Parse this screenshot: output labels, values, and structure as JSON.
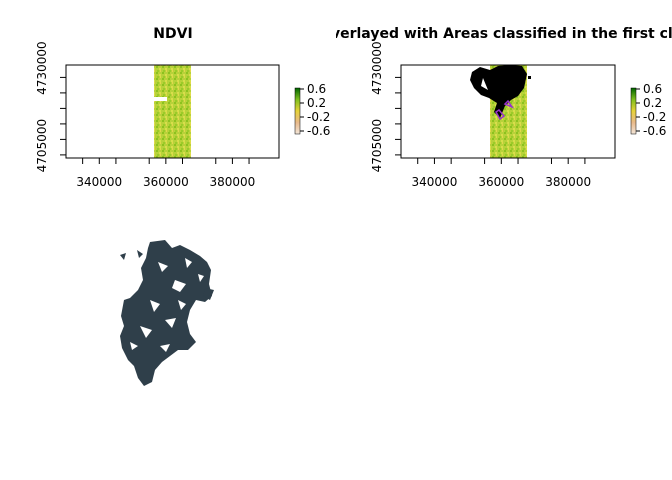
{
  "chart_data": [
    {
      "type": "heatmap",
      "title": "NDVI",
      "x_ticks": [
        340000,
        360000,
        380000
      ],
      "y_ticks": [
        4705000,
        4730000
      ],
      "x_tick_labels": [
        "340000",
        "360000",
        "380000"
      ],
      "y_tick_labels": [
        "4705000",
        "4730000"
      ],
      "xlim": [
        330000,
        394000
      ],
      "ylim": [
        4701000,
        4731000
      ],
      "raster_extent": {
        "x": [
          358000,
          369000
        ],
        "y": [
          4701000,
          4731000
        ]
      },
      "legend": {
        "placement": "right",
        "ticks": [
          0.6,
          0.2,
          -0.2,
          -0.6
        ],
        "labels": [
          "0.6",
          "0.2",
          "-0.2",
          "-0.6"
        ],
        "colors": [
          "#006400",
          "#7fbf1f",
          "#e6d23a",
          "#e8b98a",
          "#f2e6d9"
        ]
      }
    },
    {
      "type": "heatmap",
      "title": "NDVI overlayed with Areas classified in the first clustering",
      "x_ticks": [
        340000,
        360000,
        380000
      ],
      "y_ticks": [
        4705000,
        4730000
      ],
      "x_tick_labels": [
        "340000",
        "360000",
        "380000"
      ],
      "y_tick_labels": [
        "4705000",
        "4730000"
      ],
      "xlim": [
        330000,
        394000
      ],
      "ylim": [
        4701000,
        4731000
      ],
      "overlay_color": "#000000",
      "overlay_outline_color": "#9933cc",
      "legend": {
        "placement": "right",
        "ticks": [
          0.6,
          0.2,
          -0.2,
          -0.6
        ],
        "labels": [
          "0.6",
          "0.2",
          "-0.2",
          "-0.6"
        ]
      }
    },
    {
      "type": "other",
      "title": "",
      "fill_color": "#2f3f4a"
    }
  ]
}
